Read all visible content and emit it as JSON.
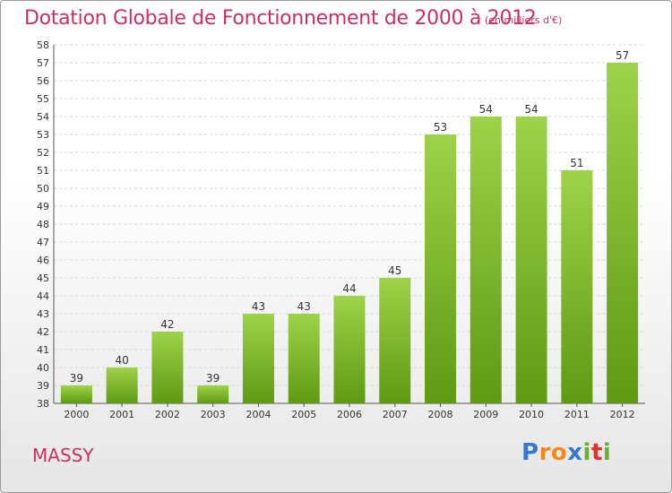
{
  "title": "Dotation Globale de Fonctionnement de 2000 à 2012",
  "subtitle": "(en milliers d'€)",
  "city": "MASSY",
  "logo": {
    "letters": [
      "P",
      "r",
      "o",
      "x",
      "i",
      "t",
      "i"
    ],
    "colors": [
      "#3a78c8",
      "#f08a1c",
      "#f08a1c",
      "#3a78c8",
      "#6ab02e",
      "#e2302a",
      "#6ab02e"
    ]
  },
  "colors": {
    "accent": "#c8315f",
    "bar_top": "#9ed24a",
    "bar_bottom": "#5e9a12"
  },
  "chart_data": {
    "type": "bar",
    "categories": [
      "2000",
      "2001",
      "2002",
      "2003",
      "2004",
      "2005",
      "2006",
      "2007",
      "2008",
      "2009",
      "2010",
      "2011",
      "2012"
    ],
    "values": [
      39,
      40,
      42,
      39,
      43,
      43,
      44,
      45,
      53,
      54,
      54,
      51,
      57
    ],
    "ylim": [
      38,
      58
    ],
    "yticks": [
      38,
      39,
      40,
      41,
      42,
      43,
      44,
      45,
      46,
      47,
      48,
      49,
      50,
      51,
      52,
      53,
      54,
      55,
      56,
      57,
      58
    ],
    "grid": true,
    "xlabel": "",
    "ylabel": ""
  }
}
